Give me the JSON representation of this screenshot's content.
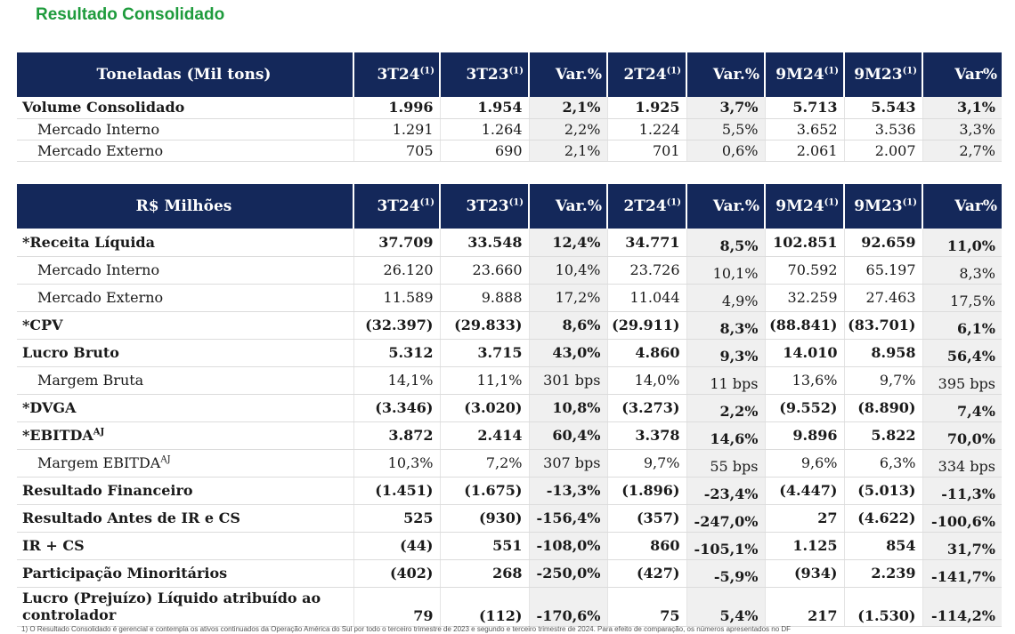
{
  "title": "Resultado Consolidado",
  "sup": "(1)",
  "tables": [
    {
      "header": {
        "label": "Toneladas (Mil tons)",
        "cols": [
          {
            "text": "3T24",
            "sup": "(1)"
          },
          {
            "text": "3T23",
            "sup": "(1)"
          },
          {
            "text": "Var.%",
            "sup": ""
          },
          {
            "text": "2T24",
            "sup": "(1)"
          },
          {
            "text": "Var.%",
            "sup": ""
          },
          {
            "text": "9M24",
            "sup": "(1)"
          },
          {
            "text": "9M23",
            "sup": "(1)"
          },
          {
            "text": "Var%",
            "sup": ""
          }
        ]
      },
      "rows": [
        {
          "label": "Volume Consolidado",
          "sup": "",
          "bold": true,
          "indent": false,
          "values": [
            "1.996",
            "1.954",
            "2,1%",
            "1.925",
            "3,7%",
            "5.713",
            "5.543",
            "3,1%"
          ]
        },
        {
          "label": "Mercado Interno",
          "sup": "",
          "bold": false,
          "indent": true,
          "values": [
            "1.291",
            "1.264",
            "2,2%",
            "1.224",
            "5,5%",
            "3.652",
            "3.536",
            "3,3%"
          ]
        },
        {
          "label": "Mercado Externo",
          "sup": "",
          "bold": false,
          "indent": true,
          "values": [
            "705",
            "690",
            "2,1%",
            "701",
            "0,6%",
            "2.061",
            "2.007",
            "2,7%"
          ]
        }
      ]
    },
    {
      "header": {
        "label": "R$ Milhões",
        "cols": [
          {
            "text": "3T24",
            "sup": "(1)"
          },
          {
            "text": "3T23",
            "sup": "(1)"
          },
          {
            "text": "Var.%",
            "sup": ""
          },
          {
            "text": "2T24",
            "sup": "(1)"
          },
          {
            "text": "Var.%",
            "sup": ""
          },
          {
            "text": "9M24",
            "sup": "(1)"
          },
          {
            "text": "9M23",
            "sup": "(1)"
          },
          {
            "text": "Var%",
            "sup": ""
          }
        ]
      },
      "rows": [
        {
          "label": "*Receita Líquida",
          "sup": "",
          "bold": true,
          "indent": false,
          "values": [
            "37.709",
            "33.548",
            "12,4%",
            "34.771",
            "8,5%",
            "102.851",
            "92.659",
            "11,0%"
          ]
        },
        {
          "label": "Mercado Interno",
          "sup": "",
          "bold": false,
          "indent": true,
          "values": [
            "26.120",
            "23.660",
            "10,4%",
            "23.726",
            "10,1%",
            "70.592",
            "65.197",
            "8,3%"
          ]
        },
        {
          "label": "Mercado Externo",
          "sup": "",
          "bold": false,
          "indent": true,
          "values": [
            "11.589",
            "9.888",
            "17,2%",
            "11.044",
            "4,9%",
            "32.259",
            "27.463",
            "17,5%"
          ]
        },
        {
          "label": "*CPV",
          "sup": "",
          "bold": true,
          "indent": false,
          "values": [
            "(32.397)",
            "(29.833)",
            "8,6%",
            "(29.911)",
            "8,3%",
            "(88.841)",
            "(83.701)",
            "6,1%"
          ]
        },
        {
          "label": "Lucro Bruto",
          "sup": "",
          "bold": true,
          "indent": false,
          "values": [
            "5.312",
            "3.715",
            "43,0%",
            "4.860",
            "9,3%",
            "14.010",
            "8.958",
            "56,4%"
          ]
        },
        {
          "label": "Margem Bruta",
          "sup": "",
          "bold": false,
          "indent": true,
          "values": [
            "14,1%",
            "11,1%",
            "301 bps",
            "14,0%",
            "11 bps",
            "13,6%",
            "9,7%",
            "395 bps"
          ]
        },
        {
          "label": "*DVGA",
          "sup": "",
          "bold": true,
          "indent": false,
          "values": [
            "(3.346)",
            "(3.020)",
            "10,8%",
            "(3.273)",
            "2,2%",
            "(9.552)",
            "(8.890)",
            "7,4%"
          ]
        },
        {
          "label": "*EBITDA",
          "sup": "AJ",
          "bold": true,
          "indent": false,
          "values": [
            "3.872",
            "2.414",
            "60,4%",
            "3.378",
            "14,6%",
            "9.896",
            "5.822",
            "70,0%"
          ]
        },
        {
          "label": "Margem EBITDA",
          "sup": "AJ",
          "bold": false,
          "indent": true,
          "values": [
            "10,3%",
            "7,2%",
            "307 bps",
            "9,7%",
            "55 bps",
            "9,6%",
            "6,3%",
            "334 bps"
          ]
        },
        {
          "label": "Resultado Financeiro",
          "sup": "",
          "bold": true,
          "indent": false,
          "values": [
            "(1.451)",
            "(1.675)",
            "-13,3%",
            "(1.896)",
            "-23,4%",
            "(4.447)",
            "(5.013)",
            "-11,3%"
          ]
        },
        {
          "label": "Resultado Antes de IR e CS",
          "sup": "",
          "bold": true,
          "indent": false,
          "values": [
            "525",
            "(930)",
            "-156,4%",
            "(357)",
            "-247,0%",
            "27",
            "(4.622)",
            "-100,6%"
          ]
        },
        {
          "label": "IR + CS",
          "sup": "",
          "bold": true,
          "indent": false,
          "values": [
            "(44)",
            "551",
            "-108,0%",
            "860",
            "-105,1%",
            "1.125",
            "854",
            "31,7%"
          ]
        },
        {
          "label": "Participação Minoritários",
          "sup": "",
          "bold": true,
          "indent": false,
          "values": [
            "(402)",
            "268",
            "-250,0%",
            "(427)",
            "-5,9%",
            "(934)",
            "2.239",
            "-141,7%"
          ]
        },
        {
          "label": "Lucro (Prejuízo) Líquido atribuído ao controlador",
          "sup": "",
          "bold": true,
          "indent": false,
          "tall": true,
          "values": [
            "79",
            "(112)",
            "-170,6%",
            "75",
            "5,4%",
            "217",
            "(1.530)",
            "-114,2%"
          ]
        }
      ]
    }
  ],
  "shaded_cols": [
    2,
    4,
    7
  ],
  "colors": {
    "header_bg": "#14285a",
    "title": "#1e9b3c",
    "shade": "#f0f0f0"
  },
  "footnote": "1) O Resultado Consolidado é gerencial e contempla os ativos continuados da Operação América do Sul por todo o terceiro trimestre de 2023 e segundo e terceiro trimestre de 2024. Para efeito de comparação, os números apresentados no DF"
}
